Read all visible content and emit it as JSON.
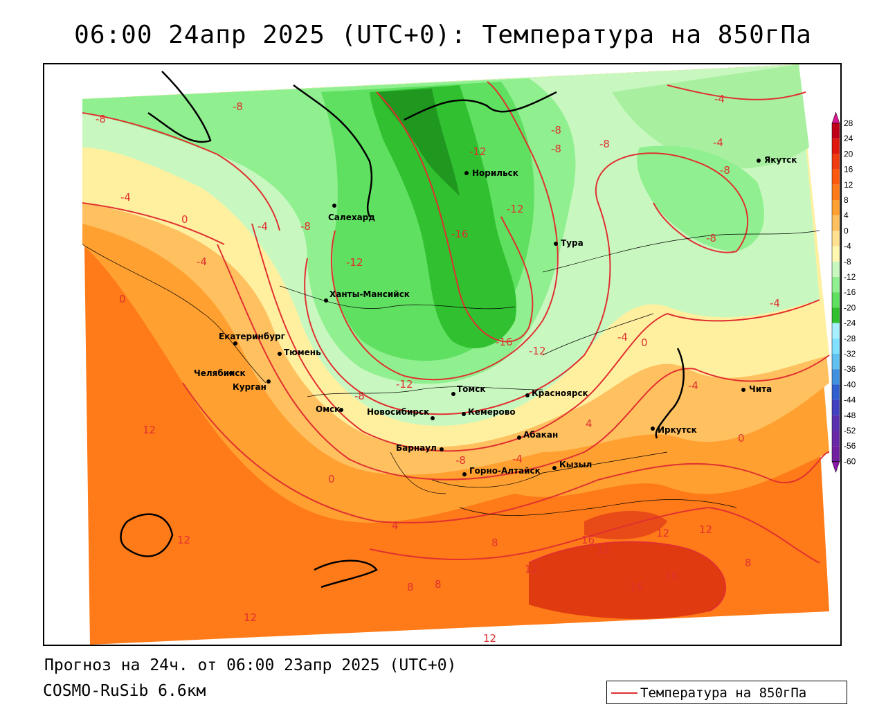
{
  "title": "06:00 24апр 2025 (UTC+0): Температура на 850гПа",
  "footer": {
    "forecast": "Прогноз на 24ч. от 06:00 23апр 2025 (UTC+0)",
    "model": "COSMO-RuSib 6.6км"
  },
  "legend": {
    "line_label": "Температура на 850гПа",
    "line_color": "#e03030"
  },
  "colorbar": {
    "ticks": [
      "28",
      "24",
      "20",
      "16",
      "12",
      "8",
      "4",
      "0",
      "-4",
      "-8",
      "-12",
      "-16",
      "-20",
      "-24",
      "-28",
      "-32",
      "-36",
      "-40",
      "-44",
      "-48",
      "-52",
      "-56",
      "-60"
    ],
    "colors": [
      "#c00018",
      "#e01810",
      "#f03c10",
      "#ff5a10",
      "#ff7a18",
      "#ffa030",
      "#ffc060",
      "#ffe090",
      "#fff8b0",
      "#c8f8c0",
      "#90f090",
      "#60e060",
      "#30c030",
      "#a8f0ff",
      "#80e0ff",
      "#60c0f0",
      "#4090e0",
      "#3060d0",
      "#4040c0",
      "#5a30b0",
      "#6828a8",
      "#7020a0",
      "#8818a8"
    ]
  },
  "cities": [
    {
      "name": "Якутск"
    },
    {
      "name": "Норильск"
    },
    {
      "name": "Салехард"
    },
    {
      "name": "Тура"
    },
    {
      "name": "Ханты-Мансийск"
    },
    {
      "name": "Екатеринбург"
    },
    {
      "name": "Тюмень"
    },
    {
      "name": "Челябинск"
    },
    {
      "name": "Курган"
    },
    {
      "name": "Омск"
    },
    {
      "name": "Новосибирск"
    },
    {
      "name": "Томск"
    },
    {
      "name": "Кемерово"
    },
    {
      "name": "Красноярск"
    },
    {
      "name": "Барнаул"
    },
    {
      "name": "Абакан"
    },
    {
      "name": "Горно-Алтайск"
    },
    {
      "name": "Кызыл"
    },
    {
      "name": "Иркутск"
    },
    {
      "name": "Чита"
    }
  ],
  "contour_labels": [
    "-8",
    "-8",
    "-4",
    "-4",
    "-8",
    "-8",
    "-12",
    "-8",
    "-8",
    "-4",
    "0",
    "-4",
    "-8",
    "-12",
    "-16",
    "-12",
    "-8",
    "-4",
    "0",
    "-16",
    "-12",
    "-12",
    "-4",
    "-8",
    "4",
    "0",
    "-4",
    "-4",
    "0",
    "-8",
    "-4",
    "12",
    "0",
    "4",
    "8",
    "12",
    "8",
    "8",
    "12",
    "16",
    "12",
    "12",
    "12",
    "16",
    "16",
    "8",
    "12",
    "12"
  ]
}
